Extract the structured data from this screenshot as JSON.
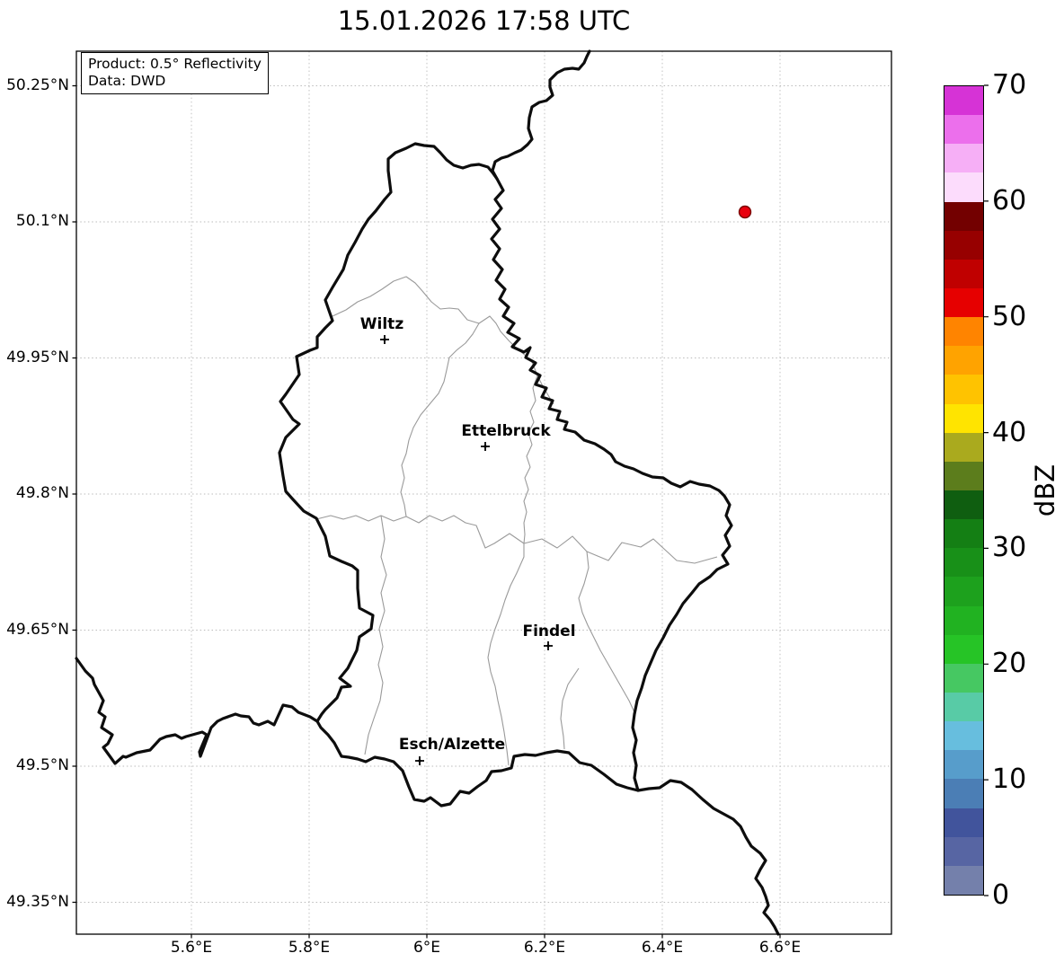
{
  "title": "15.01.2026 17:58 UTC",
  "info_box": {
    "line1": "Product: 0.5° Reflectivity",
    "line2": "Data: DWD"
  },
  "x_axis": {
    "ticks": [
      {
        "label": "5.6°E"
      },
      {
        "label": "5.8°E"
      },
      {
        "label": "6°E"
      },
      {
        "label": "6.2°E"
      },
      {
        "label": "6.4°E"
      },
      {
        "label": "6.6°E"
      }
    ]
  },
  "y_axis": {
    "ticks": [
      {
        "label": "50.25°N"
      },
      {
        "label": "50.1°N"
      },
      {
        "label": "49.95°N"
      },
      {
        "label": "49.8°N"
      },
      {
        "label": "49.65°N"
      },
      {
        "label": "49.5°N"
      },
      {
        "label": "49.35°N"
      }
    ]
  },
  "cities": [
    {
      "name": "Wiltz"
    },
    {
      "name": "Ettelbruck"
    },
    {
      "name": "Findel"
    },
    {
      "name": "Esch/Alzette"
    }
  ],
  "radar_point": {
    "dot_color": "#e8000e",
    "dot_edge_color": "#7a0000",
    "approx_lon": "6.55°E",
    "approx_lat": "50.11°N"
  },
  "colorbar": {
    "label": "dBZ",
    "unit": "dBZ",
    "range": [
      0,
      70
    ],
    "ticks": [
      {
        "label": "70"
      },
      {
        "label": "60"
      },
      {
        "label": "50"
      },
      {
        "label": "40"
      },
      {
        "label": "30"
      },
      {
        "label": "20"
      },
      {
        "label": "10"
      },
      {
        "label": "0"
      }
    ],
    "colors_top_to_bottom": [
      "#d633d6",
      "#ec6fec",
      "#f6aff6",
      "#fcdcfc",
      "#730000",
      "#970000",
      "#c00000",
      "#e60000",
      "#ff8400",
      "#ffa300",
      "#ffc300",
      "#ffe400",
      "#aaaa1e",
      "#5c7d1c",
      "#0f5e10",
      "#147f14",
      "#189018",
      "#1da11d",
      "#21b221",
      "#26c426",
      "#46c862",
      "#58cba6",
      "#67bede",
      "#579dcb",
      "#4b7eb5",
      "#41549c",
      "#5765a3",
      "#7480ab"
    ]
  }
}
